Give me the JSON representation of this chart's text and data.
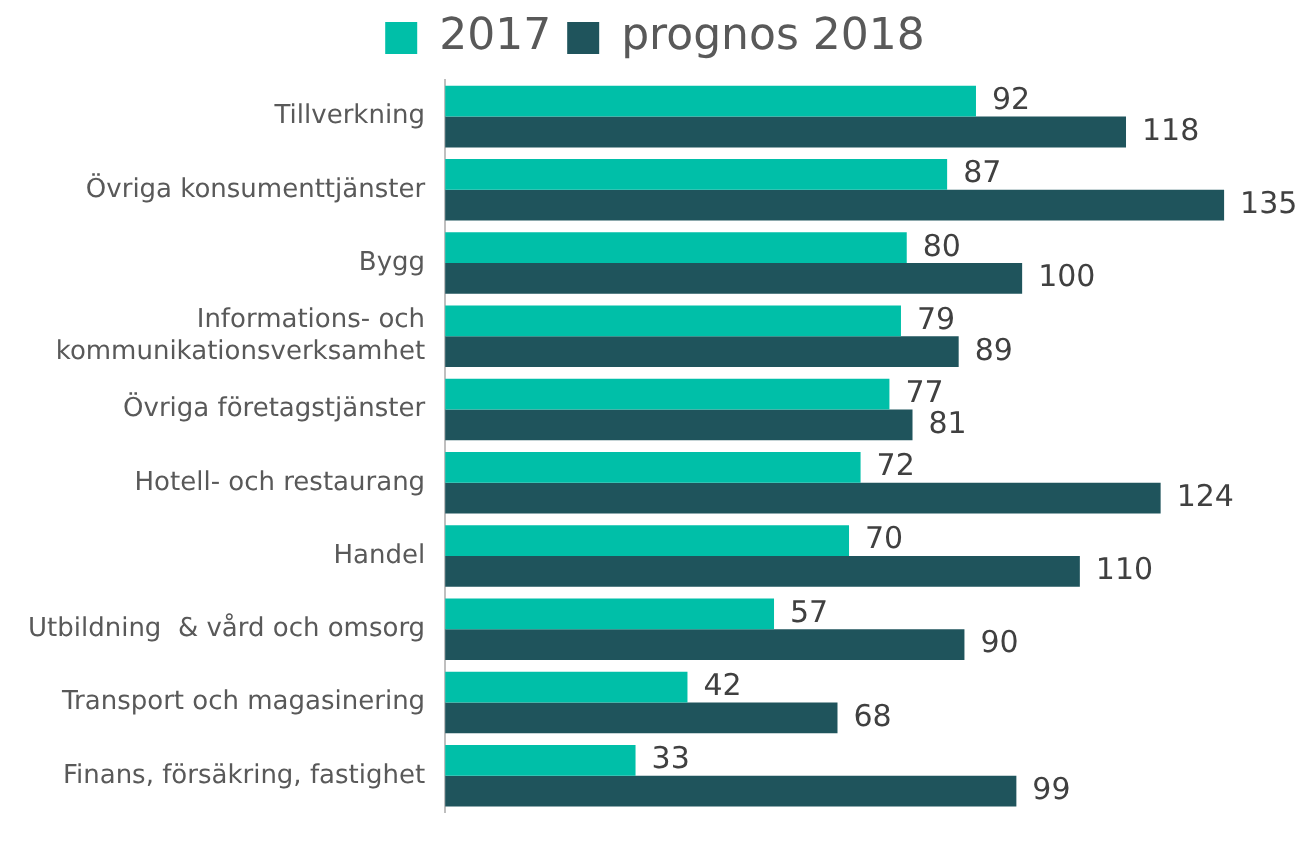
{
  "chart_data": {
    "type": "bar",
    "orientation": "horizontal",
    "legend": "top",
    "data_labels": true,
    "grid": false,
    "categories": [
      "Tillverkning",
      "Övriga konsumenttjänster",
      "Bygg",
      "Informations- och kommunikationsverksamhet",
      "Övriga företagstjänster",
      "Hotell- och restaurang",
      "Handel",
      "Utbildning  & vård och omsorg",
      "Transport och magasinering",
      "Finans, försäkring, fastighet"
    ],
    "series": [
      {
        "name": "2017",
        "color": "#00bfa8",
        "values": [
          92,
          87,
          80,
          79,
          77,
          72,
          70,
          57,
          42,
          33
        ]
      },
      {
        "name": "prognos 2018",
        "color": "#1f545c",
        "values": [
          118,
          135,
          100,
          89,
          81,
          124,
          110,
          90,
          68,
          99
        ]
      }
    ]
  }
}
